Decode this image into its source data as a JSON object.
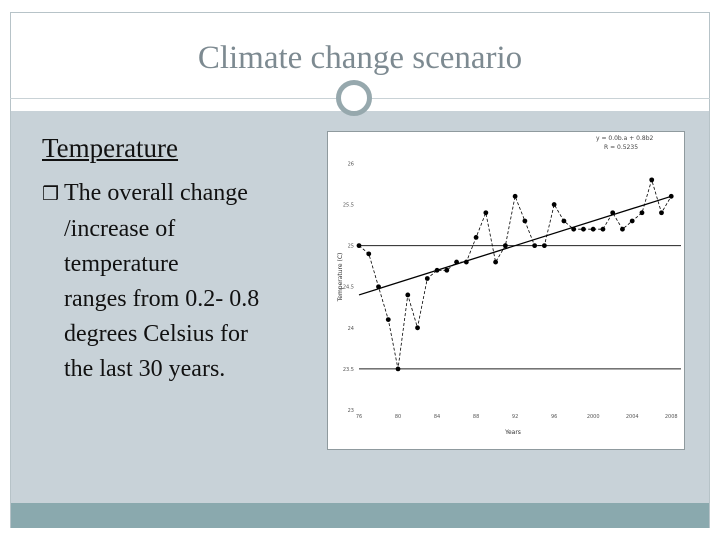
{
  "slide": {
    "title": "Climate change scenario",
    "heading": "Temperature",
    "bullet_glyph": "❒",
    "bullet_lines": [
      "The overall change",
      "/increase of",
      "temperature",
      "ranges from 0.2- 0.8",
      "degrees Celsius for",
      "the last 30 years."
    ]
  },
  "colors": {
    "title": "#7d8a91",
    "content_background": "#c8d2d8",
    "footer": "#8aa9ae",
    "circle": "#96a8ad"
  },
  "chart_data": {
    "type": "scatter",
    "xlabel": "Years",
    "ylabel": "Temperature (C)",
    "equation": "y = 0.0b.a + 0.8b2",
    "r_squared": "R = 0.5235",
    "xlim": [
      1976,
      2009
    ],
    "ylim": [
      23.0,
      26.2
    ],
    "x_tick_labels": [
      "76",
      "80",
      "84",
      "88",
      "92",
      "96",
      "2000",
      "2004",
      "2008"
    ],
    "x_tick_values": [
      1976,
      1980,
      1984,
      1988,
      1992,
      1996,
      2000,
      2004,
      2008
    ],
    "y_tick_labels": [
      "23",
      "23.5",
      "24",
      "24.5",
      "25",
      "25.5",
      "26"
    ],
    "y_tick_values": [
      23.0,
      23.5,
      24.0,
      24.5,
      25.0,
      25.5,
      26.0
    ],
    "reference_lines_y": [
      23.5,
      25.0
    ],
    "series": [
      {
        "x": [
          1976,
          1977,
          1978,
          1979,
          1980,
          1981,
          1982,
          1983,
          1984,
          1985,
          1986,
          1987,
          1988,
          1989,
          1990,
          1991,
          1992,
          1993,
          1994,
          1995,
          1996,
          1997,
          1998,
          1999,
          2000,
          2001,
          2002,
          2003,
          2004,
          2005,
          2006,
          2007,
          2008
        ],
        "y": [
          25.0,
          24.9,
          24.5,
          24.1,
          23.5,
          24.4,
          24.0,
          24.6,
          24.7,
          24.7,
          24.8,
          24.8,
          25.1,
          25.4,
          24.8,
          25.0,
          25.6,
          25.3,
          25.0,
          25.0,
          25.5,
          25.3,
          25.2,
          25.2,
          25.2,
          25.2,
          25.4,
          25.2,
          25.3,
          25.4,
          25.8,
          25.4,
          25.6
        ]
      }
    ],
    "trend": [
      [
        1976,
        24.4
      ],
      [
        2008,
        25.6
      ]
    ]
  }
}
